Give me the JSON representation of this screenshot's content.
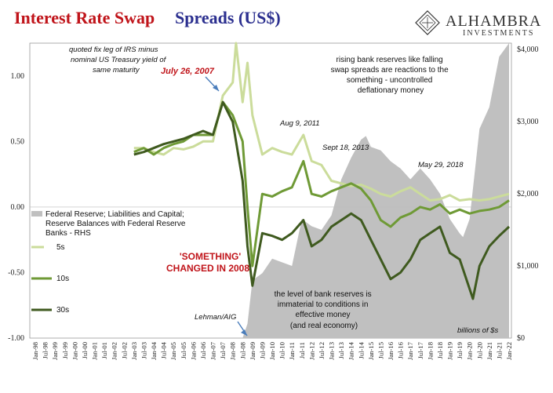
{
  "header": {
    "title_red": "Interest Rate Swap",
    "title_blue": "Spreads (US$)",
    "brand_name": "ALHAMBRA",
    "brand_sub": "INVESTMENTS"
  },
  "annotations": {
    "top_left_note": [
      "quoted fix leg of IRS minus",
      "nominal US Treasury yield of",
      "same maturity"
    ],
    "top_right_note": [
      "rising bank reserves like falling",
      "swap spreads are reactions to the",
      "something - uncontrolled",
      "deflationary money"
    ],
    "bottom_note": [
      "the level of bank reserves is",
      "immaterial to conditions in",
      "effective money",
      "(and real economy)"
    ],
    "billions": "billions of $s",
    "july_2007": "July 26, 2007",
    "aug_2011": "Aug 9, 2011",
    "sept_2013": "Sept 18, 2013",
    "may_2018": "May 29, 2018",
    "lehman": "Lehman/AIG",
    "something_1": "'SOMETHING'",
    "something_2": "CHANGED  IN 2008"
  },
  "colors": {
    "title_red": "#c0141a",
    "title_blue": "#2b2f8f",
    "reserves": "#c0c0c0",
    "s5": "#cbdc9b",
    "s10": "#6f9a36",
    "s30": "#3f5a1f",
    "arrow": "#4a7dbb"
  },
  "chart_data": {
    "type": "line",
    "xlabel": "",
    "ylabel": "",
    "x_range": [
      "Jan-98",
      "Jan-22"
    ],
    "y_left_range": [
      -1.0,
      1.25
    ],
    "y_right_range": [
      0,
      4000
    ],
    "y_left_ticks": [
      "1.00",
      "0.50",
      "0.00",
      "-0.50",
      "-1.00"
    ],
    "y_right_ticks": [
      "$4,000",
      "$3,000",
      "$2,000",
      "$1,000",
      "$0"
    ],
    "x_ticks": [
      "Jan-98",
      "Jul-98",
      "Jan-99",
      "Jul-99",
      "Jan-00",
      "Jul-00",
      "Jan-01",
      "Jul-01",
      "Jan-02",
      "Jul-02",
      "Jan-03",
      "Jul-03",
      "Jan-04",
      "Jul-04",
      "Jan-05",
      "Jul-05",
      "Jan-06",
      "Jul-06",
      "Jan-07",
      "Jul-07",
      "Jan-08",
      "Jul-08",
      "Jan-09",
      "Jul-09",
      "Jan-10",
      "Jul-10",
      "Jan-11",
      "Jul-11",
      "Jan-12",
      "Jul-12",
      "Jan-13",
      "Jul-13",
      "Jan-14",
      "Jul-14",
      "Jan-15",
      "Jul-15",
      "Jan-16",
      "Jul-16",
      "Jan-17",
      "Jul-17",
      "Jan-18",
      "Jul-18",
      "Jan-19",
      "Jul-19",
      "Jan-20",
      "Jul-20",
      "Jan-21",
      "Jul-21",
      "Jan-22"
    ],
    "legend": [
      {
        "key": "reserves",
        "label": [
          "Federal Reserve; Liabilities and Capital;",
          "Reserve Balances with Federal Reserve",
          "Banks - RHS"
        ]
      },
      {
        "key": "s5",
        "label": [
          "5s"
        ]
      },
      {
        "key": "s10",
        "label": [
          "10s"
        ]
      },
      {
        "key": "s30",
        "label": [
          "30s"
        ]
      }
    ],
    "series": [
      {
        "name": "Federal Reserve; Liabilities and Capital; Reserve Balances with Federal Reserve Banks - RHS",
        "axis": "right",
        "type": "area",
        "points": [
          [
            "Jan-98",
            0
          ],
          [
            "Jan-08",
            0
          ],
          [
            "Jul-08",
            0
          ],
          [
            "Oct-08",
            200
          ],
          [
            "Jan-09",
            800
          ],
          [
            "Jul-09",
            900
          ],
          [
            "Jan-10",
            1100
          ],
          [
            "Jul-10",
            1050
          ],
          [
            "Jan-11",
            1000
          ],
          [
            "Jul-11",
            1650
          ],
          [
            "Jan-12",
            1550
          ],
          [
            "Jul-12",
            1500
          ],
          [
            "Jan-13",
            1700
          ],
          [
            "Jul-13",
            2200
          ],
          [
            "Jan-14",
            2500
          ],
          [
            "Jul-14",
            2750
          ],
          [
            "Oct-14",
            2800
          ],
          [
            "Jan-15",
            2650
          ],
          [
            "Jul-15",
            2600
          ],
          [
            "Jan-16",
            2450
          ],
          [
            "Jul-16",
            2350
          ],
          [
            "Jan-17",
            2200
          ],
          [
            "Jul-17",
            2350
          ],
          [
            "Jan-18",
            2200
          ],
          [
            "Jul-18",
            2000
          ],
          [
            "Jan-19",
            1650
          ],
          [
            "Jul-19",
            1450
          ],
          [
            "Sep-19",
            1400
          ],
          [
            "Jan-20",
            1650
          ],
          [
            "Jul-20",
            2900
          ],
          [
            "Jan-21",
            3200
          ],
          [
            "Jul-21",
            3900
          ],
          [
            "Jan-22",
            4100
          ]
        ]
      },
      {
        "name": "5s",
        "axis": "left",
        "type": "line",
        "points": [
          [
            "Jan-03",
            0.45
          ],
          [
            "Jul-03",
            0.45
          ],
          [
            "Jan-04",
            0.42
          ],
          [
            "Jul-04",
            0.4
          ],
          [
            "Jan-05",
            0.45
          ],
          [
            "Jul-05",
            0.44
          ],
          [
            "Jan-06",
            0.46
          ],
          [
            "Jul-06",
            0.5
          ],
          [
            "Jan-07",
            0.5
          ],
          [
            "Jul-07",
            0.85
          ],
          [
            "Jan-08",
            0.95
          ],
          [
            "Mar-08",
            1.25
          ],
          [
            "Jul-08",
            0.8
          ],
          [
            "Oct-08",
            1.1
          ],
          [
            "Jan-09",
            0.7
          ],
          [
            "Jul-09",
            0.4
          ],
          [
            "Jan-10",
            0.45
          ],
          [
            "Jul-10",
            0.42
          ],
          [
            "Jan-11",
            0.4
          ],
          [
            "Aug-11",
            0.55
          ],
          [
            "Jan-12",
            0.35
          ],
          [
            "Jul-12",
            0.32
          ],
          [
            "Jan-13",
            0.2
          ],
          [
            "Jul-13",
            0.18
          ],
          [
            "Jan-14",
            0.16
          ],
          [
            "Jul-14",
            0.17
          ],
          [
            "Jan-15",
            0.14
          ],
          [
            "Jul-15",
            0.1
          ],
          [
            "Jan-16",
            0.08
          ],
          [
            "Jul-16",
            0.12
          ],
          [
            "Jan-17",
            0.15
          ],
          [
            "Jul-17",
            0.1
          ],
          [
            "Jan-18",
            0.05
          ],
          [
            "Jul-18",
            0.06
          ],
          [
            "Jan-19",
            0.09
          ],
          [
            "Jul-19",
            0.05
          ],
          [
            "Jan-20",
            0.06
          ],
          [
            "Jul-20",
            0.05
          ],
          [
            "Jan-21",
            0.06
          ],
          [
            "Jul-21",
            0.08
          ],
          [
            "Jan-22",
            0.1
          ]
        ]
      },
      {
        "name": "10s",
        "axis": "left",
        "type": "line",
        "points": [
          [
            "Jan-03",
            0.42
          ],
          [
            "Jul-03",
            0.45
          ],
          [
            "Jan-04",
            0.4
          ],
          [
            "Jul-04",
            0.45
          ],
          [
            "Jan-05",
            0.48
          ],
          [
            "Jul-05",
            0.5
          ],
          [
            "Jan-06",
            0.55
          ],
          [
            "Jul-06",
            0.55
          ],
          [
            "Jan-07",
            0.55
          ],
          [
            "Jul-07",
            0.8
          ],
          [
            "Jan-08",
            0.7
          ],
          [
            "Jul-08",
            0.5
          ],
          [
            "Oct-08",
            0.0
          ],
          [
            "Jan-09",
            -0.45
          ],
          [
            "Jul-09",
            0.1
          ],
          [
            "Jan-10",
            0.08
          ],
          [
            "Jul-10",
            0.12
          ],
          [
            "Jan-11",
            0.15
          ],
          [
            "Aug-11",
            0.35
          ],
          [
            "Jan-12",
            0.1
          ],
          [
            "Jul-12",
            0.08
          ],
          [
            "Jan-13",
            0.12
          ],
          [
            "Jul-13",
            0.15
          ],
          [
            "Jan-14",
            0.18
          ],
          [
            "Jul-14",
            0.14
          ],
          [
            "Jan-15",
            0.05
          ],
          [
            "Jul-15",
            -0.1
          ],
          [
            "Jan-16",
            -0.15
          ],
          [
            "Jul-16",
            -0.08
          ],
          [
            "Jan-17",
            -0.05
          ],
          [
            "Jul-17",
            0.0
          ],
          [
            "Jan-18",
            -0.02
          ],
          [
            "Jul-18",
            0.02
          ],
          [
            "Jan-19",
            -0.05
          ],
          [
            "Jul-19",
            -0.02
          ],
          [
            "Jan-20",
            -0.05
          ],
          [
            "Jul-20",
            -0.03
          ],
          [
            "Jan-21",
            -0.02
          ],
          [
            "Jul-21",
            0.0
          ],
          [
            "Jan-22",
            0.05
          ]
        ]
      },
      {
        "name": "30s",
        "axis": "left",
        "type": "line",
        "points": [
          [
            "Jan-03",
            0.4
          ],
          [
            "Jul-03",
            0.42
          ],
          [
            "Jan-04",
            0.45
          ],
          [
            "Jul-04",
            0.48
          ],
          [
            "Jan-05",
            0.5
          ],
          [
            "Jul-05",
            0.52
          ],
          [
            "Jan-06",
            0.55
          ],
          [
            "Jul-06",
            0.58
          ],
          [
            "Jan-07",
            0.55
          ],
          [
            "Jul-07",
            0.8
          ],
          [
            "Jan-08",
            0.65
          ],
          [
            "Jul-08",
            0.2
          ],
          [
            "Oct-08",
            -0.3
          ],
          [
            "Jan-09",
            -0.6
          ],
          [
            "Jul-09",
            -0.2
          ],
          [
            "Jan-10",
            -0.22
          ],
          [
            "Jul-10",
            -0.25
          ],
          [
            "Jan-11",
            -0.2
          ],
          [
            "Aug-11",
            -0.1
          ],
          [
            "Jan-12",
            -0.3
          ],
          [
            "Jul-12",
            -0.25
          ],
          [
            "Jan-13",
            -0.15
          ],
          [
            "Jul-13",
            -0.1
          ],
          [
            "Jan-14",
            -0.05
          ],
          [
            "Jul-14",
            -0.1
          ],
          [
            "Jan-15",
            -0.25
          ],
          [
            "Jul-15",
            -0.4
          ],
          [
            "Jan-16",
            -0.55
          ],
          [
            "Jul-16",
            -0.5
          ],
          [
            "Jan-17",
            -0.4
          ],
          [
            "Jul-17",
            -0.25
          ],
          [
            "Jan-18",
            -0.2
          ],
          [
            "Jul-18",
            -0.15
          ],
          [
            "Jan-19",
            -0.35
          ],
          [
            "Jul-19",
            -0.4
          ],
          [
            "Mar-20",
            -0.7
          ],
          [
            "Jul-20",
            -0.45
          ],
          [
            "Jan-21",
            -0.3
          ],
          [
            "Jul-21",
            -0.22
          ],
          [
            "Jan-22",
            -0.15
          ]
        ]
      }
    ]
  }
}
